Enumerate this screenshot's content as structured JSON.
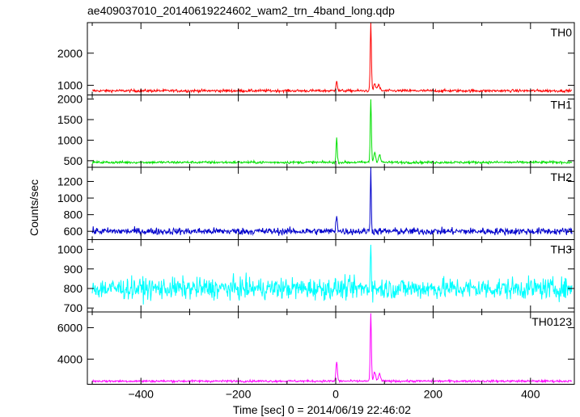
{
  "title": "ae409037010_20140619224602_wam2_trn_4band_long.qdp",
  "ylabel": "Counts/sec",
  "xlabel": "Time [sec] 0 = 2014/06/19 22:46:02",
  "chart_data": {
    "type": "line",
    "title": "ae409037010_20140619224602_wam2_trn_4band_long.qdp",
    "xlabel": "Time [sec] 0 = 2014/06/19 22:46:02",
    "ylabel": "Counts/sec",
    "xlim": [
      -510,
      490
    ],
    "x_ticks": [
      -400,
      -200,
      0,
      200,
      400
    ],
    "x_tick_labels": [
      "−400",
      "−200",
      "0",
      "200",
      "400"
    ],
    "grid": false,
    "panels": [
      {
        "name": "TH0",
        "color": "#ff0000",
        "ylim": [
          700,
          2950
        ],
        "y_ticks": [
          1000,
          2000
        ],
        "baseline": 830,
        "noise": 35,
        "features": [
          {
            "t": 2,
            "peak": 1150,
            "width": 1.5
          },
          {
            "t": 72,
            "peak": 2950,
            "width": 1.2
          },
          {
            "t": 80,
            "peak": 1050,
            "width": 2
          },
          {
            "t": 88,
            "peak": 1010,
            "width": 2.5
          }
        ]
      },
      {
        "name": "TH1",
        "color": "#00e000",
        "ylim": [
          340,
          2100
        ],
        "y_ticks": [
          500,
          1000,
          1500,
          2000
        ],
        "baseline": 460,
        "noise": 25,
        "features": [
          {
            "t": 2,
            "peak": 1050,
            "width": 1.2
          },
          {
            "t": 72,
            "peak": 2000,
            "width": 1.2
          },
          {
            "t": 80,
            "peak": 700,
            "width": 2
          },
          {
            "t": 90,
            "peak": 650,
            "width": 2
          }
        ]
      },
      {
        "name": "TH2",
        "color": "#0000cc",
        "ylim": [
          500,
          1370
        ],
        "y_ticks": [
          600,
          800,
          1000,
          1200
        ],
        "baseline": 600,
        "noise": 35,
        "features": [
          {
            "t": 2,
            "peak": 800,
            "width": 1.5
          },
          {
            "t": 72,
            "peak": 1370,
            "width": 1
          }
        ]
      },
      {
        "name": "TH3",
        "color": "#00ffff",
        "ylim": [
          680,
          1050
        ],
        "y_ticks": [
          700,
          800,
          900,
          1000
        ],
        "baseline": 800,
        "noise": 45,
        "features": [
          {
            "t": 72,
            "peak": 1050,
            "width": 1
          }
        ]
      },
      {
        "name": "TH0123",
        "color": "#ff00ff",
        "ylim": [
          2400,
          7000
        ],
        "y_ticks": [
          4000,
          6000
        ],
        "baseline": 2600,
        "noise": 55,
        "features": [
          {
            "t": 2,
            "peak": 3850,
            "width": 1.5
          },
          {
            "t": 72,
            "peak": 6900,
            "width": 1.2
          },
          {
            "t": 80,
            "peak": 3200,
            "width": 2
          },
          {
            "t": 90,
            "peak": 3100,
            "width": 2
          }
        ]
      }
    ]
  }
}
